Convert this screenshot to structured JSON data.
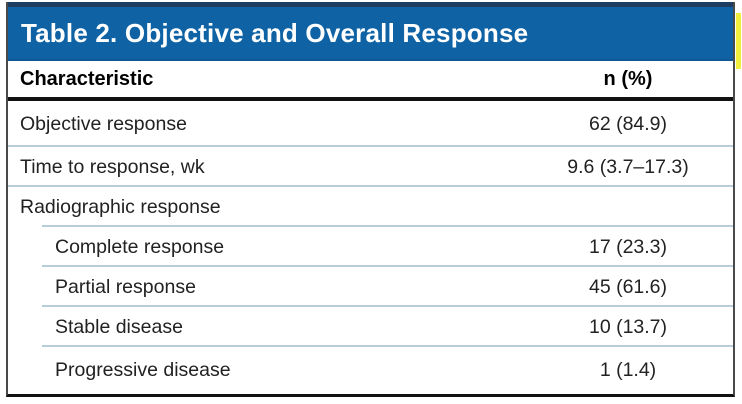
{
  "table": {
    "title": "Table 2. Objective and Overall Response",
    "columns": {
      "characteristic": "Characteristic",
      "value": "n (%)"
    },
    "rows": [
      {
        "label": "Objective response",
        "value": "62 (84.9)",
        "indent": false
      },
      {
        "label": "Time to response, wk",
        "value": "9.6 (3.7–17.3)",
        "indent": false
      },
      {
        "label": "Radiographic response",
        "value": "",
        "indent": false
      },
      {
        "label": "Complete response",
        "value": "17 (23.3)",
        "indent": true
      },
      {
        "label": "Partial response",
        "value": "45 (61.6)",
        "indent": true
      },
      {
        "label": "Stable disease",
        "value": "10 (13.7)",
        "indent": true
      },
      {
        "label": "Progressive disease",
        "value": "1 (1.4)",
        "indent": true
      }
    ]
  },
  "chart_data": {
    "type": "table",
    "title": "Table 2. Objective and Overall Response",
    "columns": [
      "Characteristic",
      "n (%)"
    ],
    "cells": [
      [
        "Objective response",
        "62 (84.9)"
      ],
      [
        "Time to response, wk",
        "9.6 (3.7–17.3)"
      ],
      [
        "Radiographic response",
        ""
      ],
      [
        "Complete response",
        "17 (23.3)"
      ],
      [
        "Partial response",
        "45 (61.6)"
      ],
      [
        "Stable disease",
        "10 (13.7)"
      ],
      [
        "Progressive disease",
        "1 (1.4)"
      ]
    ]
  },
  "colors": {
    "header_bg": "#0f63a5",
    "header_top": "#1e3d60",
    "header_edge": "#0d5796",
    "separator": "#b7cdda",
    "frame_side": "#4a4a4a",
    "rule_black": "#111111",
    "artifact_yellow": "#f2ee3c"
  }
}
